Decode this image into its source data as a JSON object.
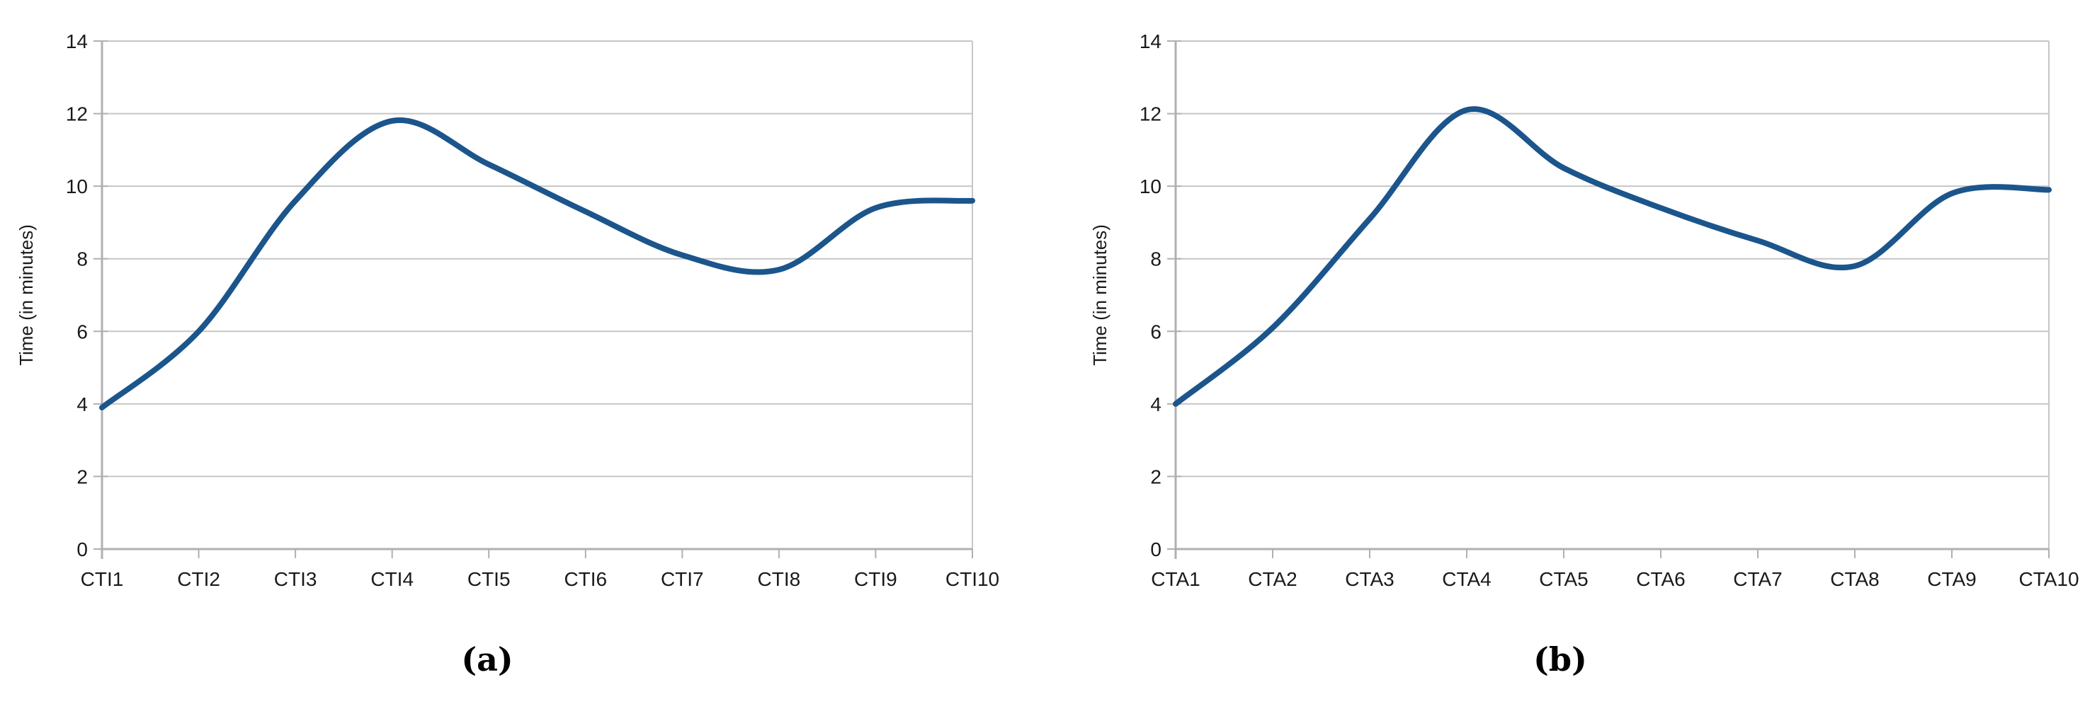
{
  "page": {
    "background": "#ffffff"
  },
  "chart_data": [
    {
      "type": "line",
      "caption": "(a)",
      "categories": [
        "CTI1",
        "CTI2",
        "CTI3",
        "CTI4",
        "CTI5",
        "CTI6",
        "CTI7",
        "CTI8",
        "CTI9",
        "CTI10"
      ],
      "series": [
        {
          "name": "Time",
          "values": [
            3.9,
            6.0,
            9.6,
            11.8,
            10.6,
            9.3,
            8.1,
            7.7,
            9.4,
            9.6
          ]
        }
      ],
      "xlabel": "",
      "ylabel": "Time (in minutes)",
      "ylim": [
        0,
        14
      ],
      "y_ticks": [
        "0",
        "2",
        "4",
        "6",
        "8",
        "10",
        "12",
        "14"
      ],
      "grid": true,
      "legend": "none",
      "smooth": true,
      "line_color": "#1B558C",
      "gridline_color": "#C6C6C6",
      "axis_color": "#B0B0B0"
    },
    {
      "type": "line",
      "caption": "(b)",
      "categories": [
        "CTA1",
        "CTA2",
        "CTA3",
        "CTA4",
        "CTA5",
        "CTA6",
        "CTA7",
        "CTA8",
        "CTA9",
        "CTA10"
      ],
      "series": [
        {
          "name": "Time",
          "values": [
            4.0,
            6.1,
            9.1,
            12.1,
            10.5,
            9.4,
            8.5,
            7.8,
            9.8,
            9.9
          ]
        }
      ],
      "xlabel": "",
      "ylabel": "Time (in minutes)",
      "ylim": [
        0,
        14
      ],
      "y_ticks": [
        "0",
        "2",
        "4",
        "6",
        "8",
        "10",
        "12",
        "14"
      ],
      "grid": true,
      "legend": "none",
      "smooth": true,
      "line_color": "#1B558C",
      "gridline_color": "#C6C6C6",
      "axis_color": "#B0B0B0"
    }
  ]
}
